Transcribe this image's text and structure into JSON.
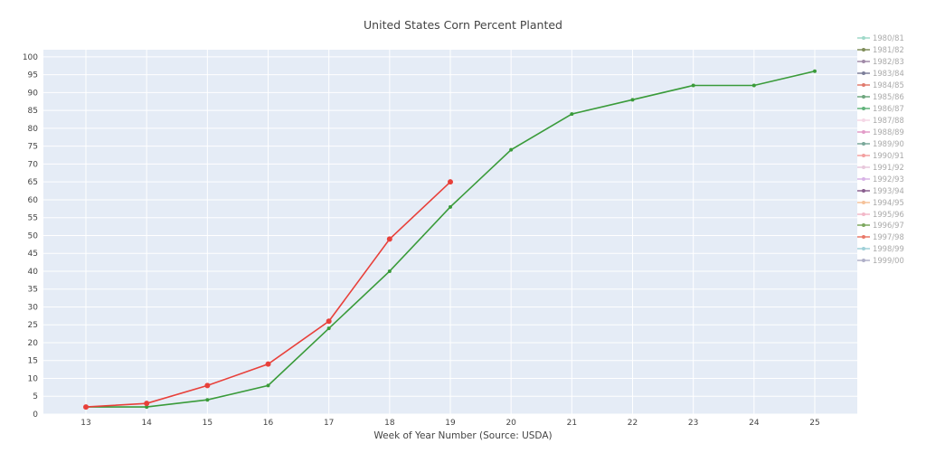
{
  "chart_data": {
    "type": "line",
    "title": "United States Corn Percent Planted",
    "xlabel": "Week of Year Number     (Source: USDA)",
    "ylabel": "",
    "xlim": [
      12.3,
      25.7
    ],
    "ylim": [
      0,
      102
    ],
    "x_ticks": [
      13,
      14,
      15,
      16,
      17,
      18,
      19,
      20,
      21,
      22,
      23,
      24,
      25
    ],
    "y_ticks": [
      0,
      5,
      10,
      15,
      20,
      25,
      30,
      35,
      40,
      45,
      50,
      55,
      60,
      65,
      70,
      75,
      80,
      85,
      90,
      95,
      100
    ],
    "grid": true,
    "legend_position": "right",
    "legend_entries": [
      {
        "name": "1980/81",
        "color": "#9fd9c9"
      },
      {
        "name": "1981/82",
        "color": "#7f8d5a"
      },
      {
        "name": "1982/83",
        "color": "#a08aa8"
      },
      {
        "name": "1983/84",
        "color": "#7d7f9a"
      },
      {
        "name": "1984/85",
        "color": "#e07a6e"
      },
      {
        "name": "1985/86",
        "color": "#6ea67e"
      },
      {
        "name": "1986/87",
        "color": "#61b37b"
      },
      {
        "name": "1987/88",
        "color": "#f5d7e6"
      },
      {
        "name": "1988/89",
        "color": "#e29bc8"
      },
      {
        "name": "1989/90",
        "color": "#7aa89a"
      },
      {
        "name": "1990/91",
        "color": "#f3a0a0"
      },
      {
        "name": "1991/92",
        "color": "#e8c8dc"
      },
      {
        "name": "1992/93",
        "color": "#d8b3e6"
      },
      {
        "name": "1993/94",
        "color": "#8a5f8f"
      },
      {
        "name": "1994/95",
        "color": "#f6c29a"
      },
      {
        "name": "1995/96",
        "color": "#f3b8c8"
      },
      {
        "name": "1996/97",
        "color": "#7da85f"
      },
      {
        "name": "1997/98",
        "color": "#e87868"
      },
      {
        "name": "1998/99",
        "color": "#9fd0d8"
      },
      {
        "name": "1999/00",
        "color": "#b0b0c8"
      }
    ],
    "series": [
      {
        "color": "#3a9b3a",
        "x": [
          13,
          14,
          15,
          16,
          17,
          18,
          19,
          20,
          21,
          22,
          23,
          24,
          25
        ],
        "y": [
          2,
          2,
          4,
          8,
          24,
          40,
          58,
          74,
          84,
          88,
          92,
          92,
          96
        ],
        "marker_size": 2
      },
      {
        "color": "#e8403a",
        "x": [
          13,
          14,
          15,
          16,
          17,
          18,
          19
        ],
        "y": [
          2,
          3,
          8,
          14,
          26,
          49,
          65
        ],
        "marker_size": 3
      }
    ]
  }
}
